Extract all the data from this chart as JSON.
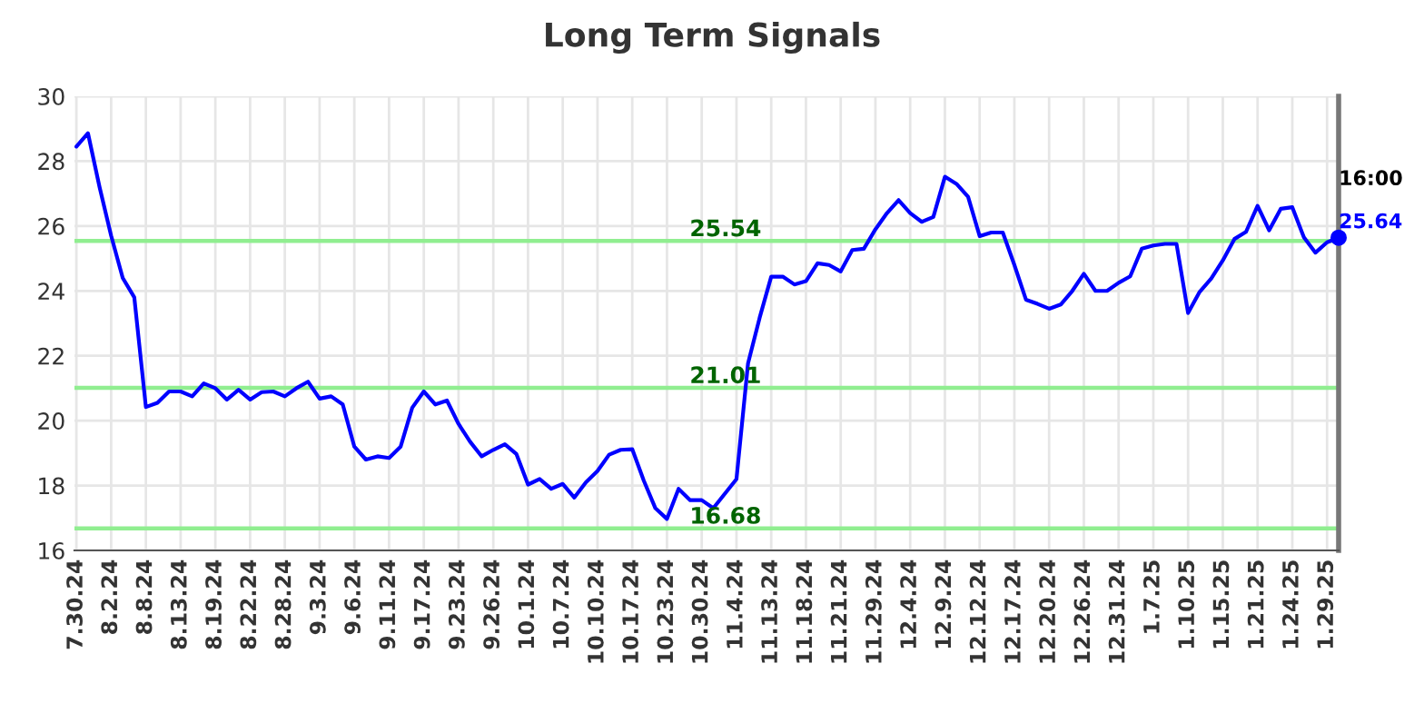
{
  "chart_data": {
    "type": "line",
    "title": "Long Term Signals",
    "categories": [
      "7.30.24",
      null,
      null,
      "8.2.24",
      null,
      null,
      "8.8.24",
      null,
      null,
      "8.13.24",
      null,
      null,
      "8.19.24",
      null,
      null,
      "8.22.24",
      null,
      null,
      "8.28.24",
      null,
      null,
      "9.3.24",
      null,
      null,
      "9.6.24",
      null,
      null,
      "9.11.24",
      null,
      null,
      "9.17.24",
      null,
      null,
      "9.23.24",
      null,
      null,
      "9.26.24",
      null,
      null,
      "10.1.24",
      null,
      null,
      "10.7.24",
      null,
      null,
      "10.10.24",
      null,
      null,
      "10.17.24",
      null,
      null,
      "10.23.24",
      null,
      null,
      "10.30.24",
      null,
      null,
      "11.4.24",
      null,
      null,
      "11.13.24",
      null,
      null,
      "11.18.24",
      null,
      null,
      "11.21.24",
      null,
      null,
      "11.29.24",
      null,
      null,
      "12.4.24",
      null,
      null,
      "12.9.24",
      null,
      null,
      "12.12.24",
      null,
      null,
      "12.17.24",
      null,
      null,
      "12.20.24",
      null,
      null,
      "12.26.24",
      null,
      null,
      "12.31.24",
      null,
      null,
      "1.7.25",
      null,
      null,
      "1.10.25",
      null,
      null,
      "1.15.25",
      null,
      null,
      "1.21.25",
      null,
      null,
      "1.24.25",
      null,
      null,
      "1.29.25",
      null
    ],
    "series": [
      {
        "color": "#0000ff",
        "marker": "none",
        "values": [
          28.45,
          28.86,
          27.2,
          25.7,
          24.4,
          23.8,
          20.42,
          20.55,
          20.9,
          20.9,
          20.75,
          21.15,
          21.0,
          20.65,
          20.95,
          20.65,
          20.88,
          20.9,
          20.75,
          21.0,
          21.2,
          20.68,
          20.75,
          20.5,
          19.2,
          18.8,
          18.9,
          18.85,
          19.2,
          20.4,
          20.9,
          20.5,
          20.62,
          19.9,
          19.35,
          18.9,
          19.1,
          19.27,
          18.97,
          18.03,
          18.2,
          17.9,
          18.05,
          17.63,
          18.1,
          18.45,
          18.95,
          19.1,
          19.12,
          18.15,
          17.3,
          16.97,
          17.9,
          17.55,
          17.55,
          17.3,
          17.75,
          18.2,
          21.77,
          23.17,
          24.44,
          24.44,
          24.2,
          24.3,
          24.85,
          24.8,
          24.6,
          25.26,
          25.3,
          25.9,
          26.4,
          26.8,
          26.4,
          26.13,
          26.28,
          27.52,
          27.3,
          26.9,
          25.69,
          25.8,
          25.8,
          24.8,
          23.73,
          23.6,
          23.45,
          23.58,
          24.0,
          24.53,
          24.0,
          24.0,
          24.25,
          24.45,
          25.3,
          25.4,
          25.45,
          25.45,
          23.32,
          23.97,
          24.38,
          24.94,
          25.6,
          25.82,
          26.62,
          25.87,
          26.53,
          26.58,
          25.65,
          25.18,
          25.5,
          25.64
        ]
      },
      {
        "type": "scatter",
        "color": "#0000ff",
        "marker": "circle",
        "values": [
          null,
          null,
          null,
          null,
          null,
          null,
          null,
          null,
          null,
          null,
          null,
          null,
          null,
          null,
          null,
          null,
          null,
          null,
          null,
          null,
          null,
          null,
          null,
          null,
          null,
          null,
          null,
          null,
          null,
          null,
          null,
          null,
          null,
          null,
          null,
          null,
          null,
          null,
          null,
          null,
          null,
          null,
          null,
          null,
          null,
          null,
          null,
          null,
          null,
          null,
          null,
          null,
          null,
          null,
          null,
          null,
          null,
          null,
          null,
          null,
          null,
          null,
          null,
          null,
          null,
          null,
          null,
          null,
          null,
          null,
          null,
          null,
          null,
          null,
          null,
          null,
          null,
          null,
          null,
          null,
          null,
          null,
          null,
          null,
          null,
          null,
          null,
          null,
          null,
          null,
          null,
          null,
          null,
          null,
          null,
          null,
          null,
          null,
          null,
          null,
          null,
          null,
          null,
          null,
          null,
          null,
          null,
          null,
          null,
          25.64
        ],
        "value_labels": [
          null,
          null,
          null,
          null,
          null,
          null,
          null,
          null,
          null,
          null,
          null,
          null,
          null,
          null,
          null,
          null,
          null,
          null,
          null,
          null,
          null,
          null,
          null,
          null,
          null,
          null,
          null,
          null,
          null,
          null,
          null,
          null,
          null,
          null,
          null,
          null,
          null,
          null,
          null,
          null,
          null,
          null,
          null,
          null,
          null,
          null,
          null,
          null,
          null,
          null,
          null,
          null,
          null,
          null,
          null,
          null,
          null,
          null,
          null,
          null,
          null,
          null,
          null,
          null,
          null,
          null,
          null,
          null,
          null,
          null,
          null,
          null,
          null,
          null,
          null,
          null,
          null,
          null,
          null,
          null,
          null,
          null,
          null,
          null,
          null,
          null,
          null,
          null,
          null,
          null,
          null,
          null,
          null,
          null,
          null,
          null,
          null,
          null,
          null,
          null,
          null,
          null,
          null,
          null,
          null,
          null,
          null,
          null,
          null,
          "25.64"
        ]
      }
    ],
    "ylim": [
      16,
      30
    ],
    "yticks": [
      16,
      18,
      20,
      22,
      24,
      26,
      28,
      30
    ],
    "grid": true,
    "legend": false,
    "ref_lines": [
      {
        "axis": "y",
        "value": 25.54,
        "label": "25.54",
        "color": "#90ee90"
      },
      {
        "axis": "y",
        "value": 21.01,
        "label": "21.01",
        "color": "#90ee90"
      },
      {
        "axis": "y",
        "value": 16.68,
        "label": "16.68",
        "color": "#90ee90"
      }
    ],
    "annotations": [
      "16:00"
    ]
  }
}
